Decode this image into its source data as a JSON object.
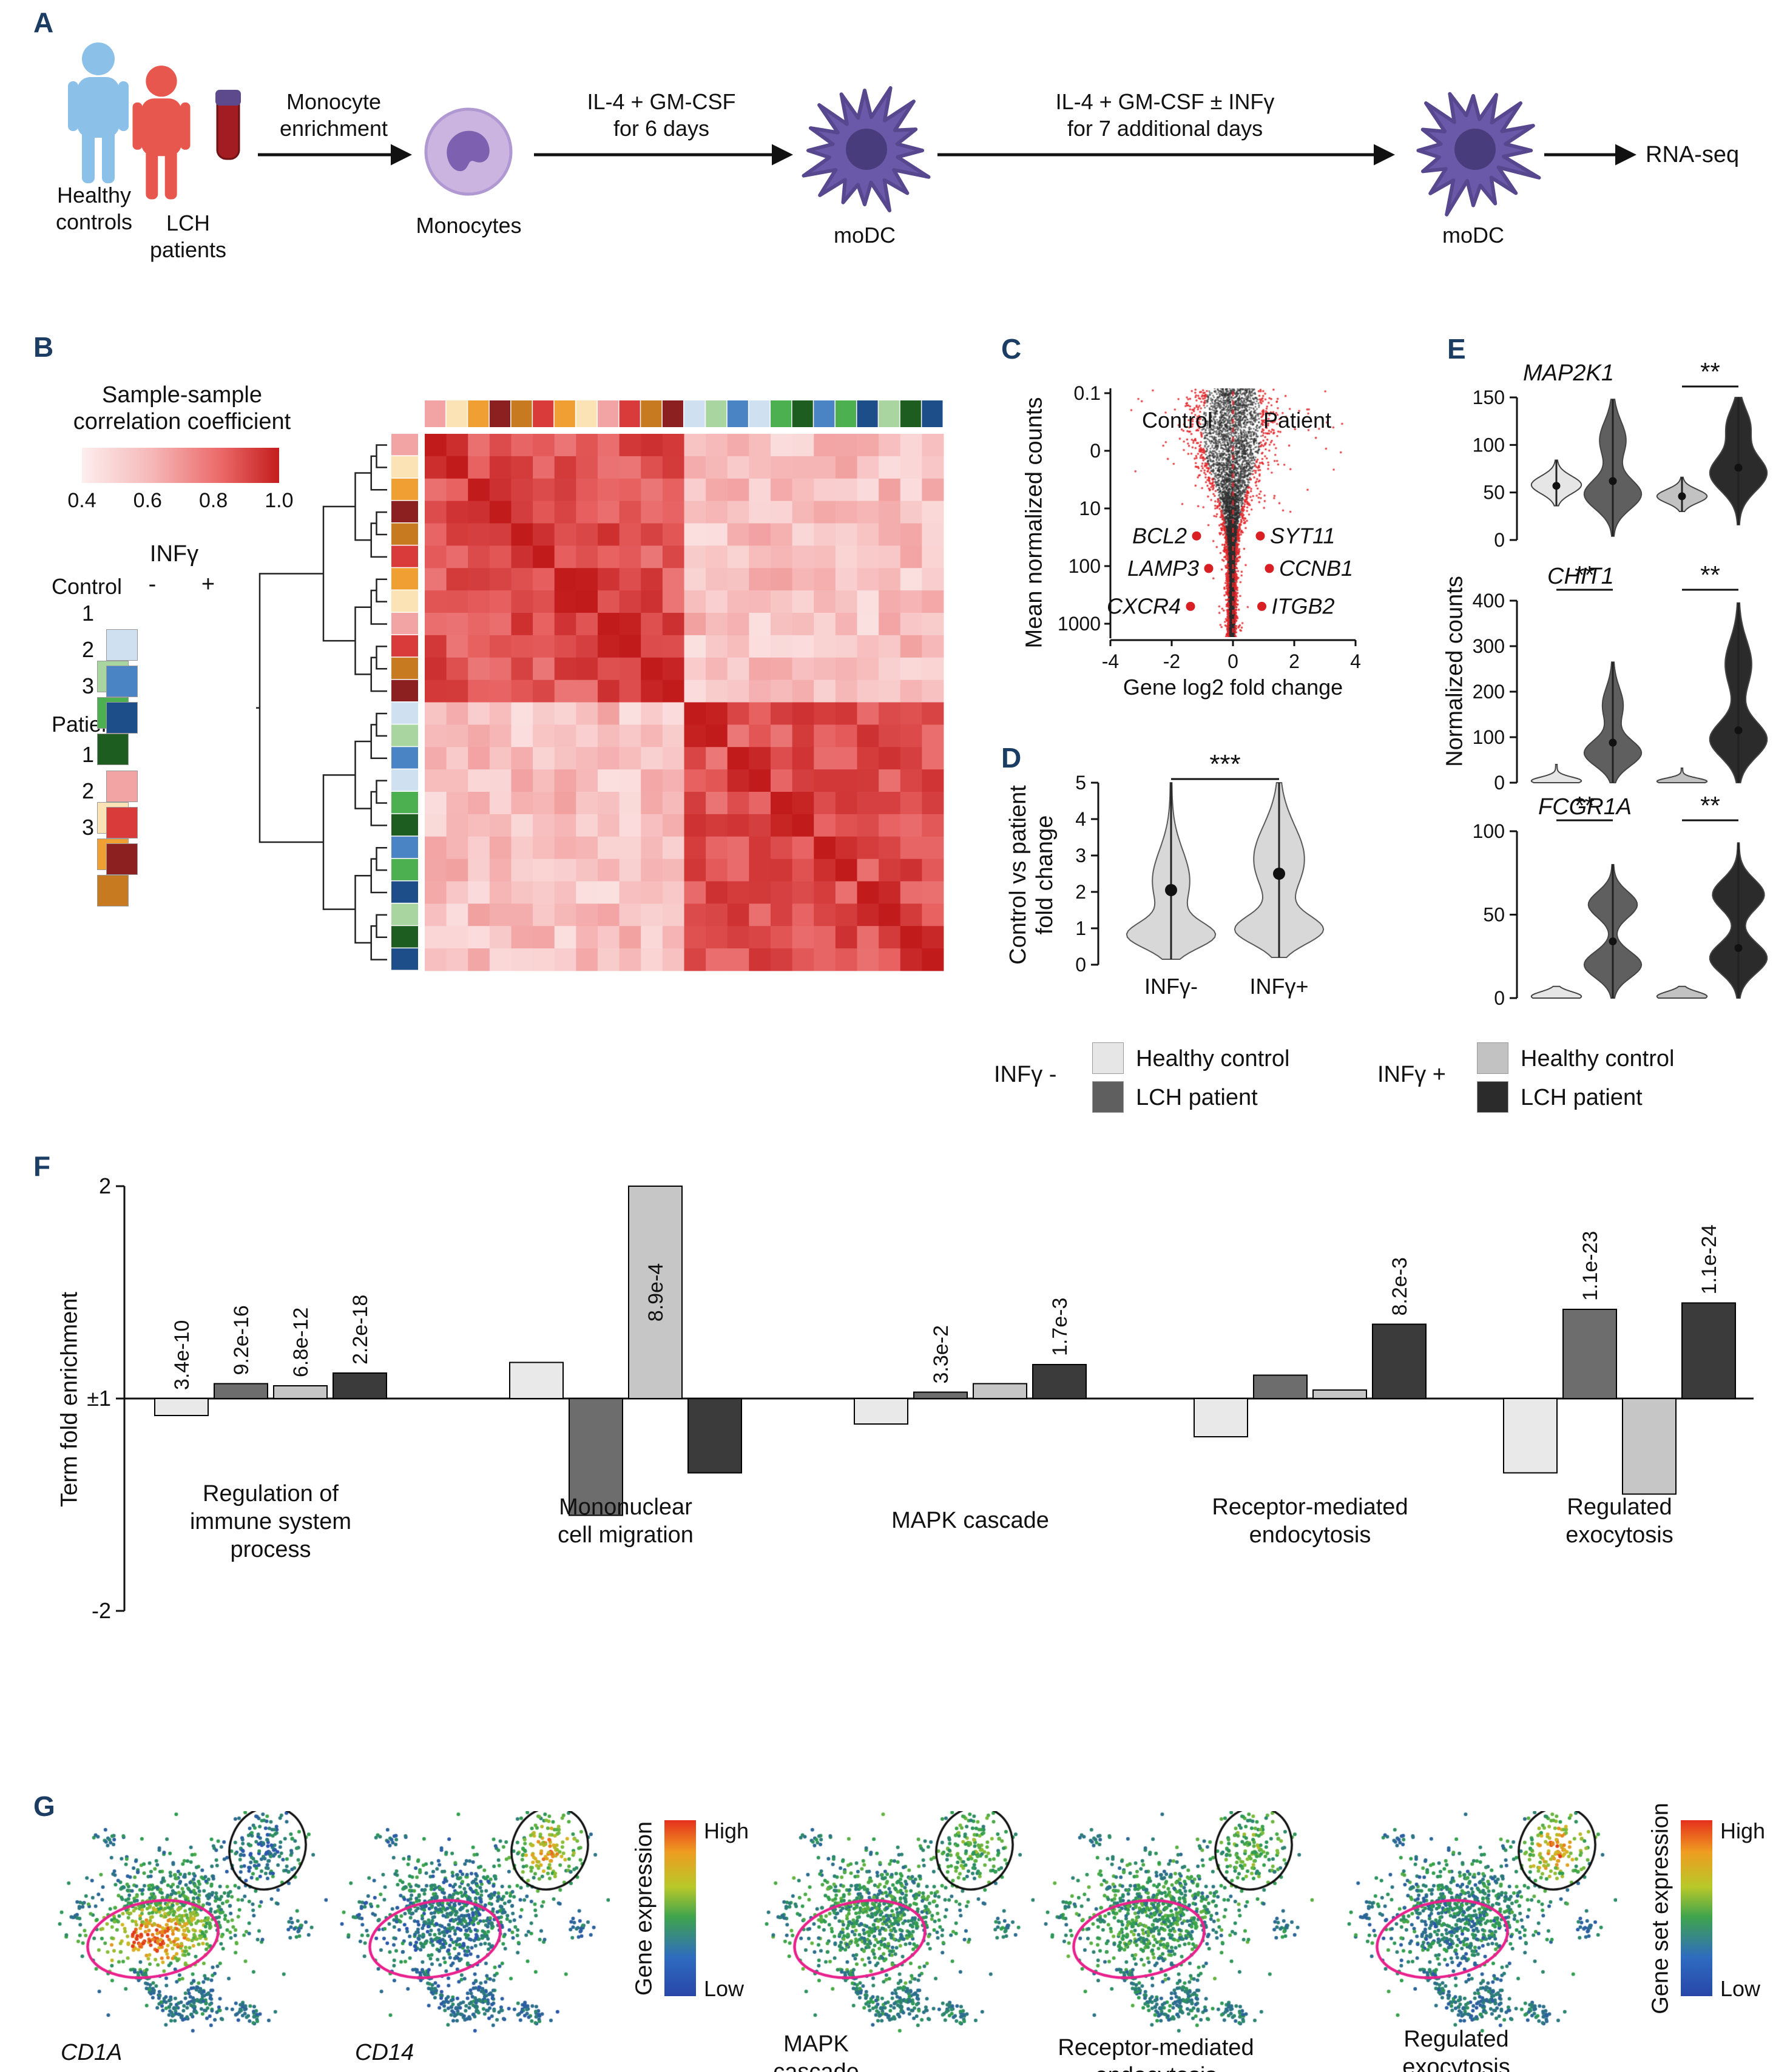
{
  "panels": {
    "a": "A",
    "b": "B",
    "c": "C",
    "d": "D",
    "e": "E",
    "f": "F",
    "g": "G"
  },
  "colors": {
    "panel_label": "#1c3d63",
    "person_healthy": "#8bc0e8",
    "person_lch": "#e8574e",
    "monocyte_body": "#cbb5e0",
    "monocyte_nucleus": "#7e60b0",
    "modc_body": "#6a58a8",
    "modc_nucleus": "#493c7d",
    "hc_minus": "#e6e6e6",
    "lch_minus": "#5f5f5f",
    "hc_plus": "#c2c2c2",
    "lch_plus": "#2b2b2b",
    "violin_d_fill": "#d8d8d8",
    "scatter_red": "#e02428",
    "pink_ellipse": "#e9218c"
  },
  "panelA": {
    "healthy_line1": "Healthy",
    "healthy_line2": "controls",
    "lch_line1": "LCH",
    "lch_line2": "patients",
    "step1_line1": "Monocyte",
    "step1_line2": "enrichment",
    "monocytes": "Monocytes",
    "step2_line1": "IL-4 + GM-CSF",
    "step2_line2": "for 6 days",
    "modc1": "moDC",
    "step3_line1": "IL-4 + GM-CSF ± INFγ",
    "step3_line2": "for 7 additional days",
    "modc2": "moDC",
    "rnaseq": "RNA-seq"
  },
  "panelB": {
    "cbar_title1": "Sample-sample",
    "cbar_title2": "correlation coefficient",
    "cbar_ticks": [
      "0.4",
      "0.6",
      "0.8",
      "1.0"
    ],
    "infg": "INFγ",
    "control": "Control",
    "patient": "Patient",
    "minus": "-",
    "plus": "+",
    "row_numbers": [
      "1",
      "2",
      "3"
    ],
    "control_minus": [
      "#cfe0f0",
      "#4a84c4",
      "#1d4e89"
    ],
    "control_plus": [
      "#a9d6a0",
      "#4caf50",
      "#1d5e20"
    ],
    "patient_minus": [
      "#f2a3a3",
      "#d93a3a",
      "#8c1f1f"
    ],
    "patient_plus": [
      "#fbe3b5",
      "#f0a032",
      "#c87a20"
    ]
  },
  "condition_legend": {
    "minus": "INFγ -",
    "plus": "INFγ +",
    "healthy": "Healthy control",
    "lch": "LCH patient"
  },
  "chart_data": [
    {
      "id": "sample-correlation-heatmap",
      "type": "heatmap",
      "title": "Sample-sample correlation coefficient",
      "scale_range": [
        0.4,
        1.0
      ],
      "color_stops": [
        [
          0.4,
          "#fdeeee"
        ],
        [
          0.6,
          "#f5b0b0"
        ],
        [
          0.8,
          "#e75f5f"
        ],
        [
          1.0,
          "#c21b1b"
        ]
      ],
      "cluster_sizes": [
        12,
        12
      ],
      "within_cluster_corr": [
        0.74,
        1.0
      ],
      "between_cluster_corr": [
        0.44,
        0.64
      ],
      "sample_colors": [
        "#f2a3a3",
        "#fbe3b5",
        "#f0a032",
        "#8c1f1f",
        "#c87a20",
        "#d93a3a",
        "#f0a032",
        "#fbe3b5",
        "#f2a3a3",
        "#d93a3a",
        "#c87a20",
        "#8c1f1f",
        "#cfe0f0",
        "#a9d6a0",
        "#4a84c4",
        "#cfe0f0",
        "#4caf50",
        "#1d5e20",
        "#4a84c4",
        "#4caf50",
        "#1d4e89",
        "#a9d6a0",
        "#1d5e20",
        "#1d4e89"
      ]
    },
    {
      "id": "deg-scatter",
      "type": "scatter",
      "xlabel": "Gene log2 fold change",
      "ylabel": "Mean normalized counts",
      "xticks": [
        "-4",
        "-2",
        "0",
        "2",
        "4"
      ],
      "ytick_labels": [
        "0.1",
        "0",
        "10",
        "100",
        "1000"
      ],
      "group_left": "Control",
      "group_right": "Patient",
      "highlighted_genes": [
        {
          "name": "BCL2",
          "log2fc": -1.2,
          "counts": 30
        },
        {
          "name": "SYT11",
          "log2fc": 0.9,
          "counts": 30
        },
        {
          "name": "LAMP3",
          "log2fc": -0.8,
          "counts": 110
        },
        {
          "name": "CCNB1",
          "log2fc": 1.2,
          "counts": 110
        },
        {
          "name": "CXCR4",
          "log2fc": -1.4,
          "counts": 500
        },
        {
          "name": "ITGB2",
          "log2fc": 0.95,
          "counts": 500
        }
      ]
    },
    {
      "id": "fold-change-violin",
      "type": "violin",
      "ylabel": "Control vs patient fold change",
      "ylabel_line1": "Control vs patient",
      "ylabel_line2": "fold change",
      "ylim": [
        0,
        5
      ],
      "yticks": [
        "0",
        "1",
        "2",
        "3",
        "4",
        "5"
      ],
      "significance": "***",
      "violins": [
        {
          "label": "INFγ-",
          "range": [
            0.15,
            5
          ],
          "median": 2.05,
          "peaks": [
            {
              "mu": 0.8,
              "s": 0.5,
              "a": 1
            },
            {
              "mu": 2.3,
              "s": 1.2,
              "a": 0.45
            }
          ]
        },
        {
          "label": "INFγ+",
          "range": [
            0.2,
            5
          ],
          "median": 2.5,
          "peaks": [
            {
              "mu": 0.95,
              "s": 0.55,
              "a": 1
            },
            {
              "mu": 2.9,
              "s": 1.3,
              "a": 0.6
            }
          ]
        }
      ]
    },
    {
      "id": "gene-violins",
      "type": "violin",
      "ylabel": "Normalized counts",
      "plots": [
        {
          "gene": "MAP2K1",
          "ylim": [
            0,
            150
          ],
          "yticks": [
            "0",
            "50",
            "100",
            "150"
          ],
          "sig": [
            {
              "pair": [
                2,
                3
              ],
              "stars": "**"
            }
          ],
          "violins": [
            {
              "range": [
                36,
                84
              ],
              "median": 57,
              "peaks": [
                {
                  "mu": 58,
                  "s": 13,
                  "a": 1
                }
              ]
            },
            {
              "range": [
                4,
                148
              ],
              "median": 62,
              "peaks": [
                {
                  "mu": 48,
                  "s": 22,
                  "a": 1
                },
                {
                  "mu": 105,
                  "s": 28,
                  "a": 0.45
                }
              ]
            },
            {
              "range": [
                30,
                66
              ],
              "median": 46,
              "peaks": [
                {
                  "mu": 46,
                  "s": 10,
                  "a": 1
                }
              ]
            },
            {
              "range": [
                16,
                150
              ],
              "median": 76,
              "peaks": [
                {
                  "mu": 70,
                  "s": 26,
                  "a": 1
                },
                {
                  "mu": 120,
                  "s": 25,
                  "a": 0.4
                }
              ]
            }
          ]
        },
        {
          "gene": "CHIT1",
          "ylim": [
            0,
            400
          ],
          "yticks": [
            "0",
            "100",
            "200",
            "300",
            "400"
          ],
          "sig": [
            {
              "pair": [
                0,
                1
              ],
              "stars": "**"
            },
            {
              "pair": [
                2,
                3
              ],
              "stars": "**"
            }
          ],
          "violins": [
            {
              "range": [
                0,
                40
              ],
              "median": null,
              "peaks": [
                {
                  "mu": 4,
                  "s": 12,
                  "a": 1
                }
              ]
            },
            {
              "range": [
                0,
                265
              ],
              "median": 88,
              "peaks": [
                {
                  "mu": 65,
                  "s": 40,
                  "a": 1
                },
                {
                  "mu": 170,
                  "s": 55,
                  "a": 0.35
                }
              ]
            },
            {
              "range": [
                0,
                32
              ],
              "median": null,
              "peaks": [
                {
                  "mu": 3,
                  "s": 10,
                  "a": 1
                }
              ]
            },
            {
              "range": [
                0,
                395
              ],
              "median": 115,
              "peaks": [
                {
                  "mu": 95,
                  "s": 55,
                  "a": 1
                },
                {
                  "mu": 260,
                  "s": 75,
                  "a": 0.45
                }
              ]
            }
          ]
        },
        {
          "gene": "FCGR1A",
          "ylim": [
            0,
            100
          ],
          "yticks": [
            "0",
            "50",
            "100"
          ],
          "sig": [
            {
              "pair": [
                0,
                1
              ],
              "stars": "**"
            },
            {
              "pair": [
                2,
                3
              ],
              "stars": "**"
            }
          ],
          "violins": [
            {
              "range": [
                0,
                7
              ],
              "median": null,
              "peaks": [
                {
                  "mu": 1,
                  "s": 4,
                  "a": 1
                }
              ]
            },
            {
              "range": [
                0,
                80
              ],
              "median": 34,
              "peaks": [
                {
                  "mu": 20,
                  "s": 11,
                  "a": 1
                },
                {
                  "mu": 56,
                  "s": 11,
                  "a": 0.85
                }
              ]
            },
            {
              "range": [
                0,
                7
              ],
              "median": null,
              "peaks": [
                {
                  "mu": 1,
                  "s": 4,
                  "a": 1
                }
              ]
            },
            {
              "range": [
                0,
                93
              ],
              "median": 30,
              "peaks": [
                {
                  "mu": 24,
                  "s": 13,
                  "a": 1
                },
                {
                  "mu": 62,
                  "s": 13,
                  "a": 0.9
                }
              ]
            }
          ]
        }
      ]
    },
    {
      "id": "go-term-bars",
      "type": "bar",
      "ylabel": "Term fold enrichment",
      "yticks": [
        "2",
        "±1",
        "-2"
      ],
      "series": [
        "Healthy control INFγ-",
        "LCH patient INFγ-",
        "Healthy control INFγ+",
        "LCH patient INFγ+"
      ],
      "series_colors": [
        "#e9e9e9",
        "#6d6d6d",
        "#c6c6c6",
        "#3b3b3b"
      ],
      "groups": [
        {
          "label": [
            "Regulation of",
            "immune system",
            "process"
          ],
          "values": [
            -1.08,
            1.07,
            1.06,
            1.12
          ],
          "pvalues": [
            "3.4e-10",
            "9.2e-16",
            "6.8e-12",
            "2.2e-18"
          ]
        },
        {
          "label": [
            "Mononuclear",
            "cell migration"
          ],
          "values": [
            1.17,
            -1.55,
            2.0,
            -1.35
          ],
          "pvalues": [
            null,
            null,
            "8.9e-4",
            null
          ],
          "p_inside": [
            false,
            false,
            true,
            false
          ]
        },
        {
          "label": [
            "MAPK cascade"
          ],
          "values": [
            -1.12,
            1.03,
            1.07,
            1.16
          ],
          "pvalues": [
            null,
            "3.3e-2",
            null,
            "1.7e-3"
          ]
        },
        {
          "label": [
            "Receptor-mediated",
            "endocytosis"
          ],
          "values": [
            -1.18,
            1.11,
            1.04,
            1.35
          ],
          "pvalues": [
            null,
            null,
            null,
            "8.2e-3"
          ]
        },
        {
          "label": [
            "Regulated",
            "exocytosis"
          ],
          "values": [
            -1.35,
            1.42,
            -1.45,
            1.45
          ],
          "pvalues": [
            null,
            "1.1e-23",
            null,
            "1.1e-24"
          ]
        }
      ]
    },
    {
      "id": "tsne-panels",
      "type": "scatter",
      "gradient": [
        [
          0,
          "#2b50b4"
        ],
        [
          0.35,
          "#2f9e4f"
        ],
        [
          0.55,
          "#7fbe39"
        ],
        [
          0.72,
          "#d8b623"
        ],
        [
          0.87,
          "#e87b1e"
        ],
        [
          1,
          "#e02f1b"
        ]
      ],
      "plots": [
        {
          "label": [
            "CD1A"
          ],
          "italic": true,
          "base": 0.25,
          "pink": 0.95,
          "black": 0.08
        },
        {
          "label": [
            "CD14"
          ],
          "italic": true,
          "base": 0.22,
          "pink": 0.15,
          "black": 0.8
        },
        {
          "label": [
            "MAPK",
            "cascade"
          ],
          "italic": false,
          "base": 0.3,
          "pink": 0.32,
          "black": 0.45
        },
        {
          "label": [
            "Receptor-mediated",
            "endocytosis"
          ],
          "italic": false,
          "base": 0.3,
          "pink": 0.35,
          "black": 0.5
        },
        {
          "label": [
            "Regulated",
            "exocytosis"
          ],
          "italic": false,
          "base": 0.25,
          "pink": 0.2,
          "black": 0.88
        }
      ],
      "colorbar_gene": {
        "title": "Gene expression",
        "high": "High",
        "low": "Low"
      },
      "colorbar_geneset": {
        "title": "Gene set expression",
        "high": "High",
        "low": "Low"
      }
    }
  ]
}
